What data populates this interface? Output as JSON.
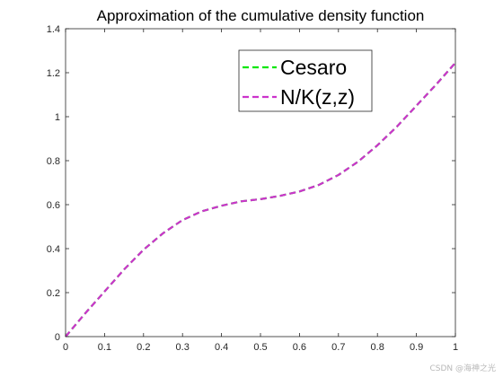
{
  "chart_data": {
    "type": "line",
    "title": "Approximation of the cumulative density function",
    "xlabel": "",
    "ylabel": "",
    "xlim": [
      0,
      1
    ],
    "ylim": [
      0,
      1.4
    ],
    "xticks": [
      0,
      0.1,
      0.2,
      0.3,
      0.4,
      0.5,
      0.6,
      0.7,
      0.8,
      0.9,
      1
    ],
    "xtick_labels": [
      "0",
      "0.1",
      "0.2",
      "0.3",
      "0.4",
      "0.5",
      "0.6",
      "0.7",
      "0.8",
      "0.9",
      "1"
    ],
    "yticks": [
      0,
      0.2,
      0.4,
      0.6,
      0.8,
      1,
      1.2,
      1.4
    ],
    "ytick_labels": [
      "0",
      "0.2",
      "0.4",
      "0.6",
      "0.8",
      "1",
      "1.2",
      "1.4"
    ],
    "grid": false,
    "legend_position": "top-right",
    "x": [
      0,
      0.05,
      0.1,
      0.15,
      0.2,
      0.25,
      0.3,
      0.35,
      0.4,
      0.45,
      0.5,
      0.55,
      0.6,
      0.65,
      0.7,
      0.75,
      0.8,
      0.85,
      0.9,
      0.95,
      1.0
    ],
    "series": [
      {
        "name": "Cesaro",
        "color": "#00e600",
        "style": "dashed",
        "values": [
          0,
          0.105,
          0.205,
          0.305,
          0.395,
          0.47,
          0.53,
          0.57,
          0.595,
          0.615,
          0.625,
          0.64,
          0.66,
          0.69,
          0.735,
          0.795,
          0.87,
          0.955,
          1.05,
          1.145,
          1.245
        ]
      },
      {
        "name": "N/K(z,z)",
        "color": "#cc33cc",
        "style": "dashed",
        "values": [
          0,
          0.105,
          0.205,
          0.305,
          0.395,
          0.47,
          0.53,
          0.57,
          0.595,
          0.615,
          0.625,
          0.64,
          0.66,
          0.69,
          0.735,
          0.795,
          0.87,
          0.955,
          1.05,
          1.145,
          1.245
        ]
      }
    ]
  },
  "watermark": "CSDN @海神之光"
}
